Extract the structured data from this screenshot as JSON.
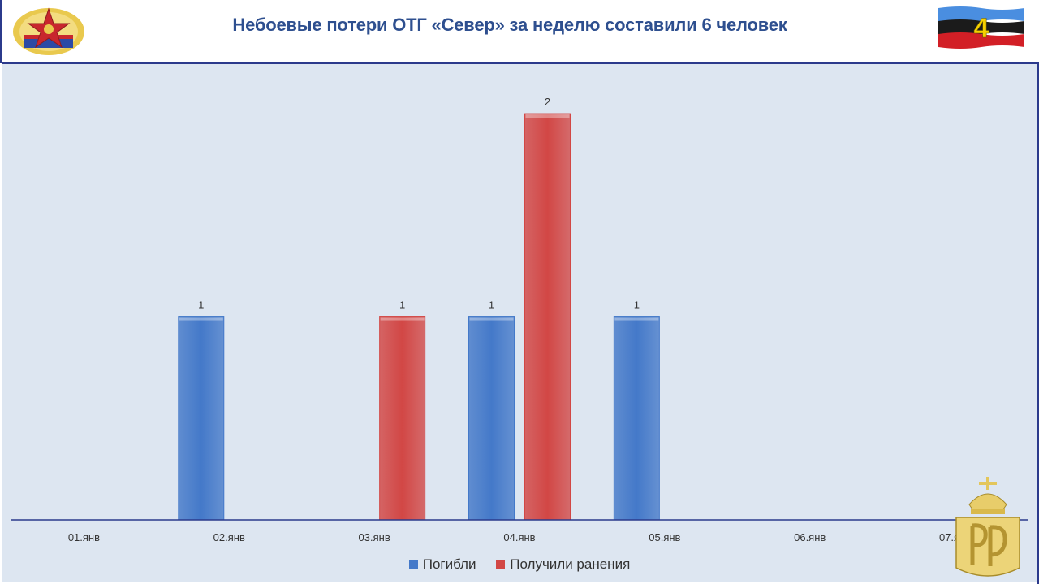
{
  "header": {
    "title": "Небоевые потери ОТГ «Север» за неделю составили 6 человек",
    "slide_number": "4"
  },
  "chart_data": {
    "type": "bar",
    "categories": [
      "01.янв",
      "02.янв",
      "03.янв",
      "04.янв",
      "05.янв",
      "06.янв",
      "07.янв"
    ],
    "series": [
      {
        "name": "Погибли",
        "color": "#4479c9",
        "values": [
          0,
          1,
          0,
          1,
          1,
          0,
          0
        ]
      },
      {
        "name": "Получили ранения",
        "color": "#d24745",
        "values": [
          0,
          0,
          1,
          2,
          0,
          0,
          0
        ]
      }
    ],
    "ylim": [
      0,
      2.2
    ],
    "grid": false,
    "legend": "bottom"
  },
  "colors": {
    "title": "#2e4f8f",
    "background": "#dde6f1",
    "border": "#2b3a8c",
    "slide_number": "#f5d000"
  },
  "icons": {
    "emblem": "lnr-coat-of-arms-icon",
    "flag": "lnr-flag-icon",
    "watermark": "crown-monogram-watermark-icon"
  }
}
